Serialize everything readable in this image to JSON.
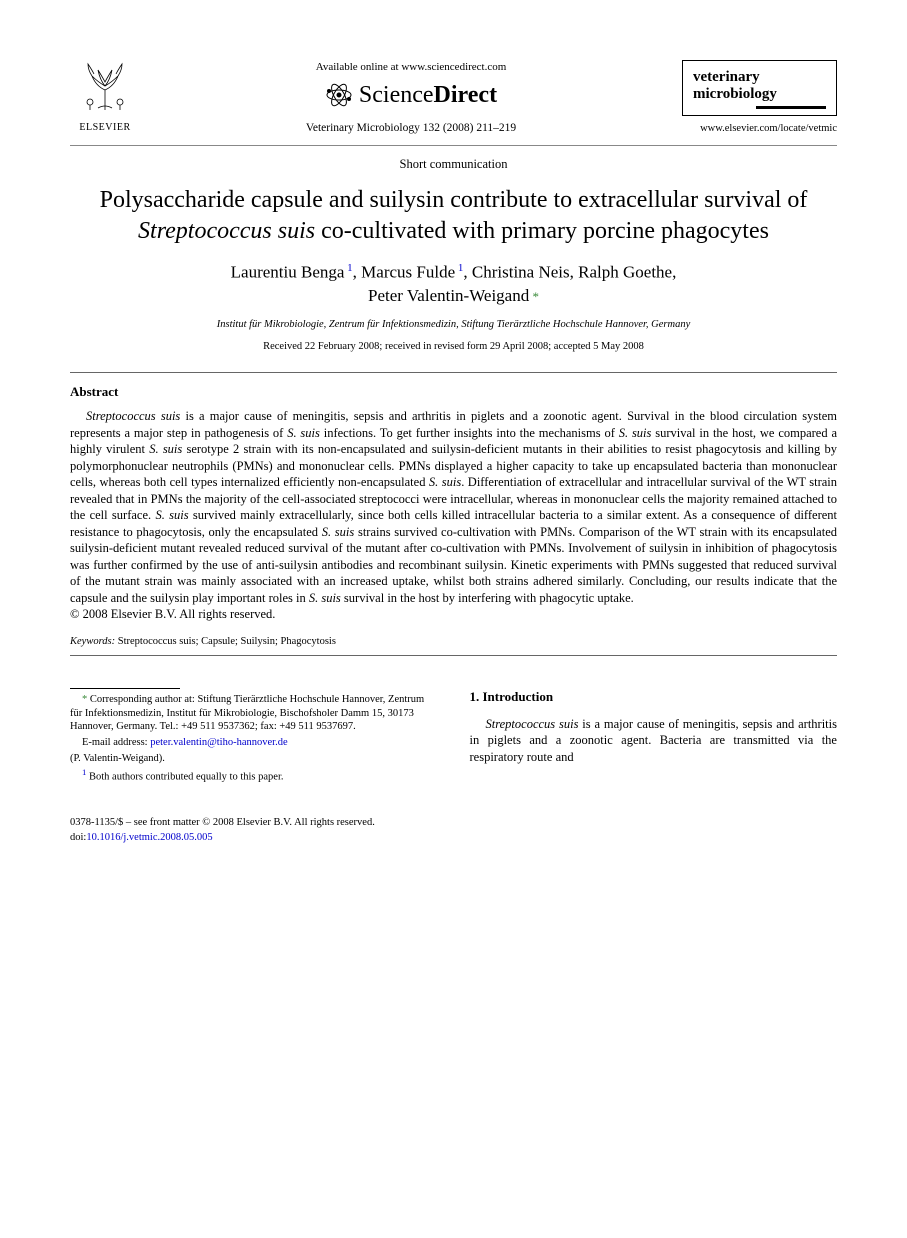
{
  "header": {
    "elsevier_label": "ELSEVIER",
    "available_online": "Available online at www.sciencedirect.com",
    "sciencedirect_prefix": "Science",
    "sciencedirect_suffix": "Direct",
    "citation": "Veterinary Microbiology 132 (2008) 211–219",
    "journal_name_line1": "veterinary",
    "journal_name_line2": "microbiology",
    "journal_url": "www.elsevier.com/locate/vetmic"
  },
  "article": {
    "type": "Short communication",
    "title_pre": "Polysaccharide capsule and suilysin contribute to extracellular survival of ",
    "title_italic": "Streptococcus suis",
    "title_post": " co-cultivated with primary porcine phagocytes",
    "authors_html_parts": [
      {
        "name": "Laurentiu Benga",
        "sup": "1"
      },
      {
        "name": "Marcus Fulde",
        "sup": "1"
      },
      {
        "name": "Christina Neis",
        "sup": ""
      },
      {
        "name": "Ralph Goethe",
        "sup": ""
      },
      {
        "name": "Peter Valentin-Weigand",
        "sup": "*"
      }
    ],
    "affiliation": "Institut für Mikrobiologie, Zentrum für Infektionsmedizin, Stiftung Tierärztliche Hochschule Hannover, Germany",
    "history": "Received 22 February 2008; received in revised form 29 April 2008; accepted 5 May 2008"
  },
  "abstract": {
    "heading": "Abstract",
    "text_pre": "Streptococcus suis",
    "text_body": " is a major cause of meningitis, sepsis and arthritis in piglets and a zoonotic agent. Survival in the blood circulation system represents a major step in pathogenesis of S. suis infections. To get further insights into the mechanisms of S. suis survival in the host, we compared a highly virulent S. suis serotype 2 strain with its non-encapsulated and suilysin-deficient mutants in their abilities to resist phagocytosis and killing by polymorphonuclear neutrophils (PMNs) and mononuclear cells. PMNs displayed a higher capacity to take up encapsulated bacteria than mononuclear cells, whereas both cell types internalized efficiently non-encapsulated S. suis. Differentiation of extracellular and intracellular survival of the WT strain revealed that in PMNs the majority of the cell-associated streptococci were intracellular, whereas in mononuclear cells the majority remained attached to the cell surface. S. suis survived mainly extracellularly, since both cells killed intracellular bacteria to a similar extent. As a consequence of different resistance to phagocytosis, only the encapsulated S. suis strains survived co-cultivation with PMNs. Comparison of the WT strain with its encapsulated suilysin-deficient mutant revealed reduced survival of the mutant after co-cultivation with PMNs. Involvement of suilysin in inhibition of phagocytosis was further confirmed by the use of anti-suilysin antibodies and recombinant suilysin. Kinetic experiments with PMNs suggested that reduced survival of the mutant strain was mainly associated with an increased uptake, whilst both strains adhered similarly. Concluding, our results indicate that the capsule and the suilysin play important roles in S. suis survival in the host by interfering with phagocytic uptake.",
    "copyright": "© 2008 Elsevier B.V. All rights reserved."
  },
  "keywords": {
    "label": "Keywords:",
    "list": "Streptococcus suis; Capsule; Suilysin; Phagocytosis"
  },
  "footnotes": {
    "corr_label": "Corresponding author at: Stiftung Tierärztliche Hochschule Hannover, Zentrum für Infektionsmedizin, Institut für Mikrobiologie, Bischofsholer Damm 15, 30173 Hannover, Germany. Tel.: +49 511 9537362; fax: +49 511 9537697.",
    "email_label": "E-mail address:",
    "email": "peter.valentin@tiho-hannover.de",
    "email_attrib": "(P. Valentin-Weigand).",
    "fn1": "Both authors contributed equally to this paper."
  },
  "section1": {
    "heading": "1. Introduction",
    "p1_italic": "Streptococcus suis",
    "p1_rest": " is a major cause of meningitis, sepsis and arthritis in piglets and a zoonotic agent. Bacteria are transmitted via the respiratory route and"
  },
  "footer": {
    "line1": "0378-1135/$ – see front matter © 2008 Elsevier B.V. All rights reserved.",
    "doi_label": "doi:",
    "doi": "10.1016/j.vetmic.2008.05.005"
  },
  "colors": {
    "link": "#0000cc",
    "star": "#3a8a3a",
    "text": "#000000",
    "rule": "#666666"
  }
}
